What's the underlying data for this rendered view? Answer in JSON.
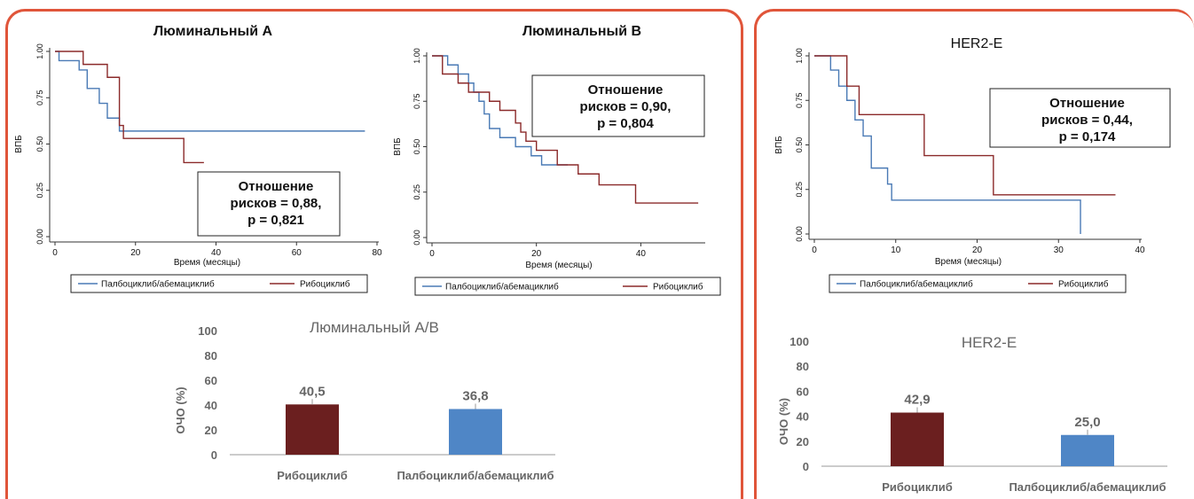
{
  "colors": {
    "panel_border": "#e0553a",
    "blue": "#4a7ab5",
    "red": "#8b2a2a",
    "bar_red": "#6b1f1f",
    "bar_blue": "#4f86c6",
    "grey_text": "#666666"
  },
  "chart_data": [
    {
      "id": "km-lum-a",
      "type": "line",
      "title": "Люминальный А",
      "xlabel": "Время (месяцы)",
      "ylabel": "ВПБ",
      "xlim": [
        0,
        80
      ],
      "ylim": [
        0,
        1
      ],
      "xticks": [
        "0",
        "20",
        "40",
        "60",
        "80"
      ],
      "yticks": [
        "0.00",
        "0.25",
        "0.50",
        "0.75",
        "1.00"
      ],
      "annotation": [
        "Отношение",
        "рисков = 0,88,",
        "p = 0,821"
      ],
      "legend": [
        "Палбоциклиб/абемациклиб",
        "Рибоциклиб"
      ],
      "series": [
        {
          "name": "Палбоциклиб/абемациклиб",
          "color": "blue",
          "x": [
            0,
            1,
            6,
            8,
            11,
            13,
            16,
            77
          ],
          "y": [
            1.0,
            0.95,
            0.9,
            0.8,
            0.72,
            0.64,
            0.57,
            0.57
          ]
        },
        {
          "name": "Рибоциклиб",
          "color": "red",
          "x": [
            0,
            7,
            13,
            16,
            17,
            32,
            37
          ],
          "y": [
            1.0,
            0.93,
            0.86,
            0.6,
            0.53,
            0.4,
            0.4
          ]
        }
      ]
    },
    {
      "id": "km-lum-b",
      "type": "line",
      "title": "Люминальный В",
      "xlabel": "Время (месяцы)",
      "ylabel": "ВПБ",
      "xlim": [
        0,
        52
      ],
      "ylim": [
        0,
        1
      ],
      "xticks": [
        "0",
        "20",
        "40"
      ],
      "yticks": [
        "0.00",
        "0.25",
        "0.50",
        "0.75",
        "1.00"
      ],
      "annotation": [
        "Отношение",
        "рисков = 0,90,",
        "p = 0,804"
      ],
      "legend": [
        "Палбоциклиб/абемациклиб",
        "Рибоциклиб"
      ],
      "series": [
        {
          "name": "Палбоциклиб/абемациклиб",
          "color": "blue",
          "x": [
            0,
            3,
            5,
            7,
            8,
            9,
            10,
            11,
            13,
            16,
            19,
            21,
            26
          ],
          "y": [
            1.0,
            0.95,
            0.9,
            0.85,
            0.8,
            0.75,
            0.68,
            0.6,
            0.55,
            0.5,
            0.45,
            0.4,
            0.4
          ]
        },
        {
          "name": "Рибоциклиб",
          "color": "red",
          "x": [
            0,
            2,
            5,
            7,
            11,
            13,
            16,
            17,
            18,
            20,
            24,
            28,
            32,
            39,
            51
          ],
          "y": [
            1.0,
            0.9,
            0.85,
            0.8,
            0.75,
            0.7,
            0.63,
            0.58,
            0.53,
            0.48,
            0.4,
            0.35,
            0.29,
            0.19,
            0.19
          ]
        }
      ]
    },
    {
      "id": "km-her2",
      "type": "line",
      "title": "HER2-E",
      "xlabel": "Время (месяцы)",
      "ylabel": "ВПБ",
      "xlim": [
        0,
        40
      ],
      "ylim": [
        0,
        1
      ],
      "xticks": [
        "0",
        "10",
        "20",
        "30",
        "40"
      ],
      "yticks": [
        "0.00",
        "0.25",
        "0.50",
        "0.75",
        "1.00"
      ],
      "annotation": [
        "Отношение",
        "рисков = 0,44,",
        "p = 0,174"
      ],
      "legend": [
        "Палбоциклиб/абемациклиб",
        "Рибоциклиб"
      ],
      "series": [
        {
          "name": "Палбоциклиб/абемациклиб",
          "color": "blue",
          "x": [
            0,
            2,
            3,
            4,
            5,
            6,
            7,
            9,
            9.5,
            32.7,
            32.7
          ],
          "y": [
            1.0,
            0.92,
            0.83,
            0.75,
            0.64,
            0.55,
            0.37,
            0.28,
            0.19,
            0.19,
            0.0
          ]
        },
        {
          "name": "Рибоциклиб",
          "color": "red",
          "x": [
            0,
            4,
            5.5,
            13.5,
            22,
            37
          ],
          "y": [
            1.0,
            0.83,
            0.67,
            0.44,
            0.22,
            0.22
          ]
        }
      ]
    },
    {
      "id": "bar-lum",
      "type": "bar",
      "title": "Люминальный А/В",
      "ylabel": "ОЧО (%)",
      "ylim": [
        0,
        100
      ],
      "yticks": [
        "0",
        "20",
        "40",
        "60",
        "80",
        "100"
      ],
      "categories": [
        "Рибоциклиб",
        "Палбоциклиб/абемациклиб"
      ],
      "values": [
        40.5,
        36.8
      ],
      "value_labels": [
        "40,5",
        "36,8"
      ],
      "bar_colors": [
        "bar_red",
        "bar_blue"
      ]
    },
    {
      "id": "bar-her2",
      "type": "bar",
      "title": "HER2-E",
      "ylabel": "ОЧО (%)",
      "ylim": [
        0,
        100
      ],
      "yticks": [
        "0",
        "20",
        "40",
        "60",
        "80",
        "100"
      ],
      "categories": [
        "Рибоциклиб",
        "Палбоциклиб/абемациклиб"
      ],
      "values": [
        42.9,
        25.0
      ],
      "value_labels": [
        "42,9",
        "25,0"
      ],
      "bar_colors": [
        "bar_red",
        "bar_blue"
      ]
    }
  ]
}
